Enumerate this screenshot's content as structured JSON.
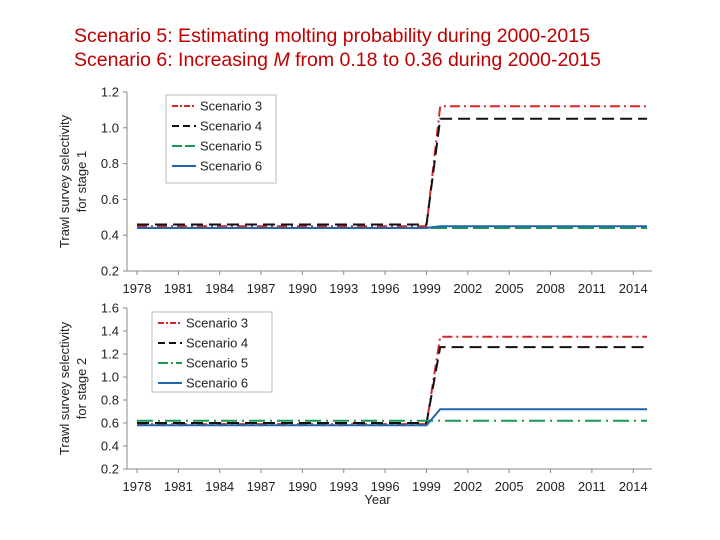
{
  "slide": {
    "title_line1": "Scenario 5: Estimating molting probability during 2000-2015",
    "title_line2_prefix": "Scenario 6: Increasing ",
    "title_line2_italic": "M",
    "title_line2_suffix": " from 0.18 to 0.36 during 2000-2015"
  },
  "chart_data": [
    {
      "type": "line",
      "ylabel_line1": "Trawl survey selectivity",
      "ylabel_line2": "for stage 1",
      "xlabel": "",
      "ylim": [
        0.2,
        1.2
      ],
      "yticks": [
        "0.2",
        "0.4",
        "0.6",
        "0.8",
        "1.0",
        "1.2"
      ],
      "xlim": [
        1978,
        2015
      ],
      "xticks": [
        "1978",
        "1981",
        "1984",
        "1987",
        "1990",
        "1993",
        "1996",
        "1999",
        "2002",
        "2005",
        "2008",
        "2011",
        "2014"
      ],
      "grid": false,
      "legend_position": "top-left",
      "series": [
        {
          "name": "Scenario 3",
          "color": "#d62728",
          "dash": "10,4,2,4",
          "x": [
            1978,
            1999,
            2000,
            2015
          ],
          "values": [
            0.45,
            0.45,
            1.12,
            1.12
          ]
        },
        {
          "name": "Scenario 4",
          "color": "#111111",
          "dash": "12,6",
          "x": [
            1978,
            1999,
            2000,
            2015
          ],
          "values": [
            0.46,
            0.46,
            1.05,
            1.05
          ]
        },
        {
          "name": "Scenario 5",
          "color": "#1a9850",
          "dash": "16,5",
          "x": [
            1978,
            2015
          ],
          "values": [
            0.44,
            0.44
          ]
        },
        {
          "name": "Scenario 6",
          "color": "#2166ac",
          "dash": "",
          "x": [
            1978,
            1999,
            2000,
            2015
          ],
          "values": [
            0.44,
            0.44,
            0.45,
            0.45
          ]
        }
      ]
    },
    {
      "type": "line",
      "ylabel_line1": "Trawl survey selectivity",
      "ylabel_line2": "for stage 2",
      "xlabel": "Year",
      "ylim": [
        0.2,
        1.6
      ],
      "yticks": [
        "0.2",
        "0.4",
        "0.6",
        "0.8",
        "1.0",
        "1.2",
        "1.4",
        "1.6"
      ],
      "xlim": [
        1978,
        2015
      ],
      "xticks": [
        "1978",
        "1981",
        "1984",
        "1987",
        "1990",
        "1993",
        "1996",
        "1999",
        "2002",
        "2005",
        "2008",
        "2011",
        "2014"
      ],
      "grid": false,
      "legend_position": "top-left",
      "series": [
        {
          "name": "Scenario 3",
          "color": "#d62728",
          "dash": "10,4,2,4",
          "x": [
            1978,
            1999,
            2000,
            2015
          ],
          "values": [
            0.59,
            0.59,
            1.35,
            1.35
          ]
        },
        {
          "name": "Scenario 4",
          "color": "#111111",
          "dash": "12,6",
          "x": [
            1978,
            1999,
            2000,
            2015
          ],
          "values": [
            0.6,
            0.6,
            1.26,
            1.26
          ]
        },
        {
          "name": "Scenario 5",
          "color": "#1a9850",
          "dash": "16,5,2,5",
          "x": [
            1978,
            2015
          ],
          "values": [
            0.62,
            0.62
          ]
        },
        {
          "name": "Scenario 6",
          "color": "#2166ac",
          "dash": "",
          "x": [
            1978,
            1999,
            2000,
            2015
          ],
          "values": [
            0.58,
            0.58,
            0.72,
            0.72
          ]
        }
      ]
    }
  ]
}
